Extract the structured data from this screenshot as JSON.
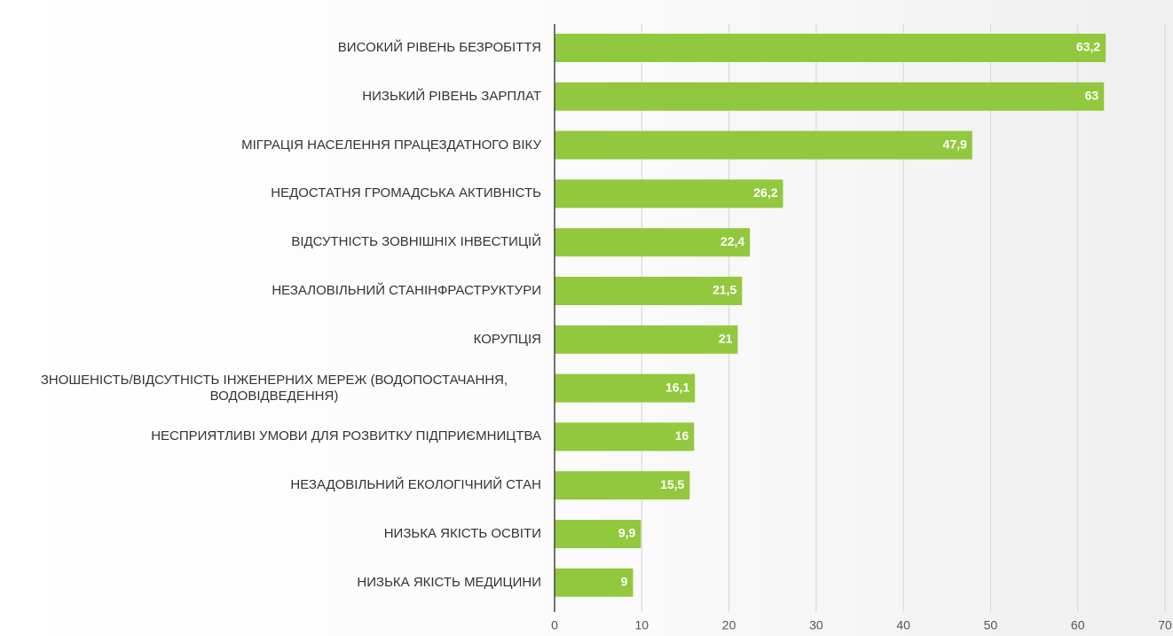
{
  "chart_data": {
    "type": "barh",
    "categories": [
      "ВИСОКИЙ РІВЕНЬ БЕЗРОБІТТЯ",
      "НИЗЬКИЙ РІВЕНЬ ЗАРПЛАТ",
      "МІГРАЦІЯ НАСЕЛЕННЯ ПРАЦЕЗДАТНОГО ВІКУ",
      "НЕДОСТАТНЯ ГРОМАДСЬКА АКТИВНІСТЬ",
      "ВІДСУТНІСТЬ ЗОВНІШНІХ ІНВЕСТИЦІЙ",
      "НЕЗАЛОВІЛЬНИЙ СТАНІНФРАСТРУКТУРИ",
      "КОРУПЦІЯ",
      "ЗНОШЕНІСТЬ/ВІДСУТНІСТЬ ІНЖЕНЕРНИХ МЕРЕЖ (ВОДОПОСТАЧАННЯ, ВОДОВІДВЕДЕННЯ)",
      "НЕСПРИЯТЛИВІ УМОВИ ДЛЯ РОЗВИТКУ ПІДПРИЄМНИЦТВА",
      "НЕЗАДОВІЛЬНИЙ ЕКОЛОГІЧНИЙ СТАН",
      "НИЗЬКА ЯКІСТЬ ОСВІТИ",
      "НИЗЬКА ЯКІСТЬ МЕДИЦИНИ"
    ],
    "values": [
      63.2,
      63,
      47.9,
      26.2,
      22.4,
      21.5,
      21,
      16.1,
      16,
      15.5,
      9.9,
      9
    ],
    "value_labels": [
      "63,2",
      "63",
      "47,9",
      "26,2",
      "22,4",
      "21,5",
      "21",
      "16,1",
      "16",
      "15,5",
      "9,9",
      "9"
    ],
    "color": "#92c83e",
    "xlim": [
      0,
      70
    ],
    "xticks": [
      0,
      10,
      20,
      30,
      40,
      50,
      60,
      70
    ],
    "grid": true
  }
}
